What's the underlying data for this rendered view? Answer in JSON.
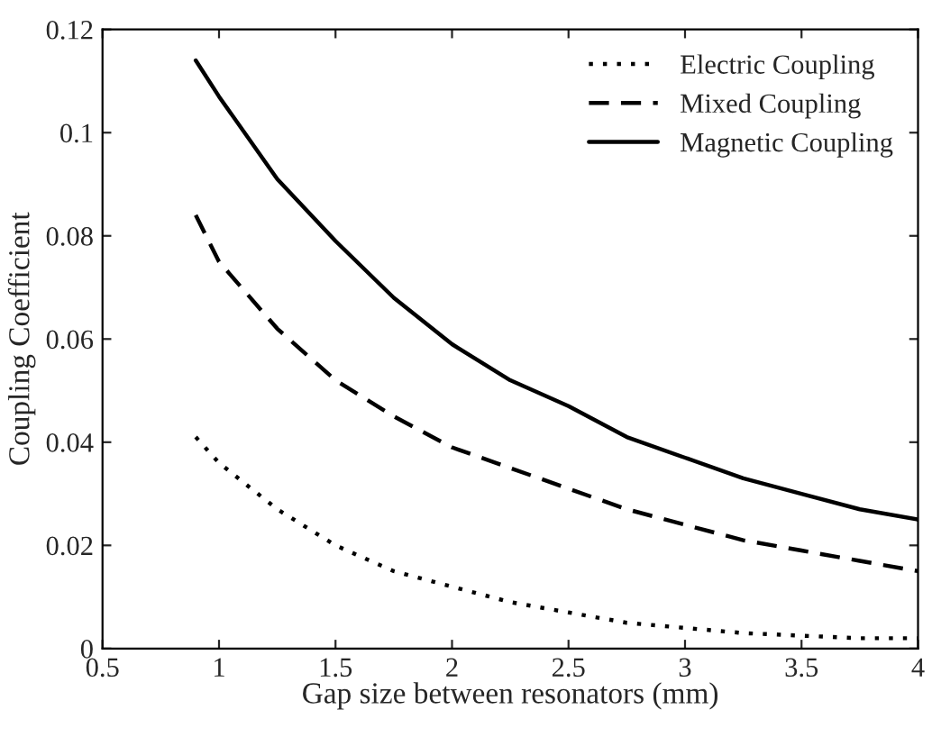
{
  "chart_data": {
    "type": "line",
    "xlabel": "Gap size between resonators (mm)",
    "ylabel": "Coupling Coefficient",
    "x": [
      0.9,
      1.0,
      1.25,
      1.5,
      1.75,
      2.0,
      2.25,
      2.5,
      2.75,
      3.0,
      3.25,
      3.5,
      3.75,
      4.0
    ],
    "series": [
      {
        "name": "Electric Coupling",
        "color": "#000000",
        "line_style": "dotted",
        "values": [
          0.041,
          0.036,
          0.027,
          0.02,
          0.015,
          0.012,
          0.009,
          0.007,
          0.005,
          0.004,
          0.003,
          0.0025,
          0.002,
          0.002
        ]
      },
      {
        "name": "Mixed Coupling",
        "color": "#000000",
        "line_style": "dashed",
        "values": [
          0.084,
          0.075,
          0.062,
          0.052,
          0.045,
          0.039,
          0.035,
          0.031,
          0.027,
          0.024,
          0.021,
          0.019,
          0.017,
          0.015
        ]
      },
      {
        "name": "Magnetic Coupling",
        "color": "#000000",
        "line_style": "solid",
        "values": [
          0.114,
          0.107,
          0.091,
          0.079,
          0.068,
          0.059,
          0.052,
          0.047,
          0.041,
          0.037,
          0.033,
          0.03,
          0.027,
          0.025
        ]
      }
    ],
    "xlim": [
      0.5,
      4
    ],
    "xticks": [
      0.5,
      1,
      1.5,
      2,
      2.5,
      3,
      3.5,
      4
    ],
    "ylim": [
      0,
      0.12
    ],
    "yticks": [
      0,
      0.02,
      0.04,
      0.06,
      0.08,
      0.1,
      0.12
    ],
    "legend": "top right",
    "grid": false
  }
}
